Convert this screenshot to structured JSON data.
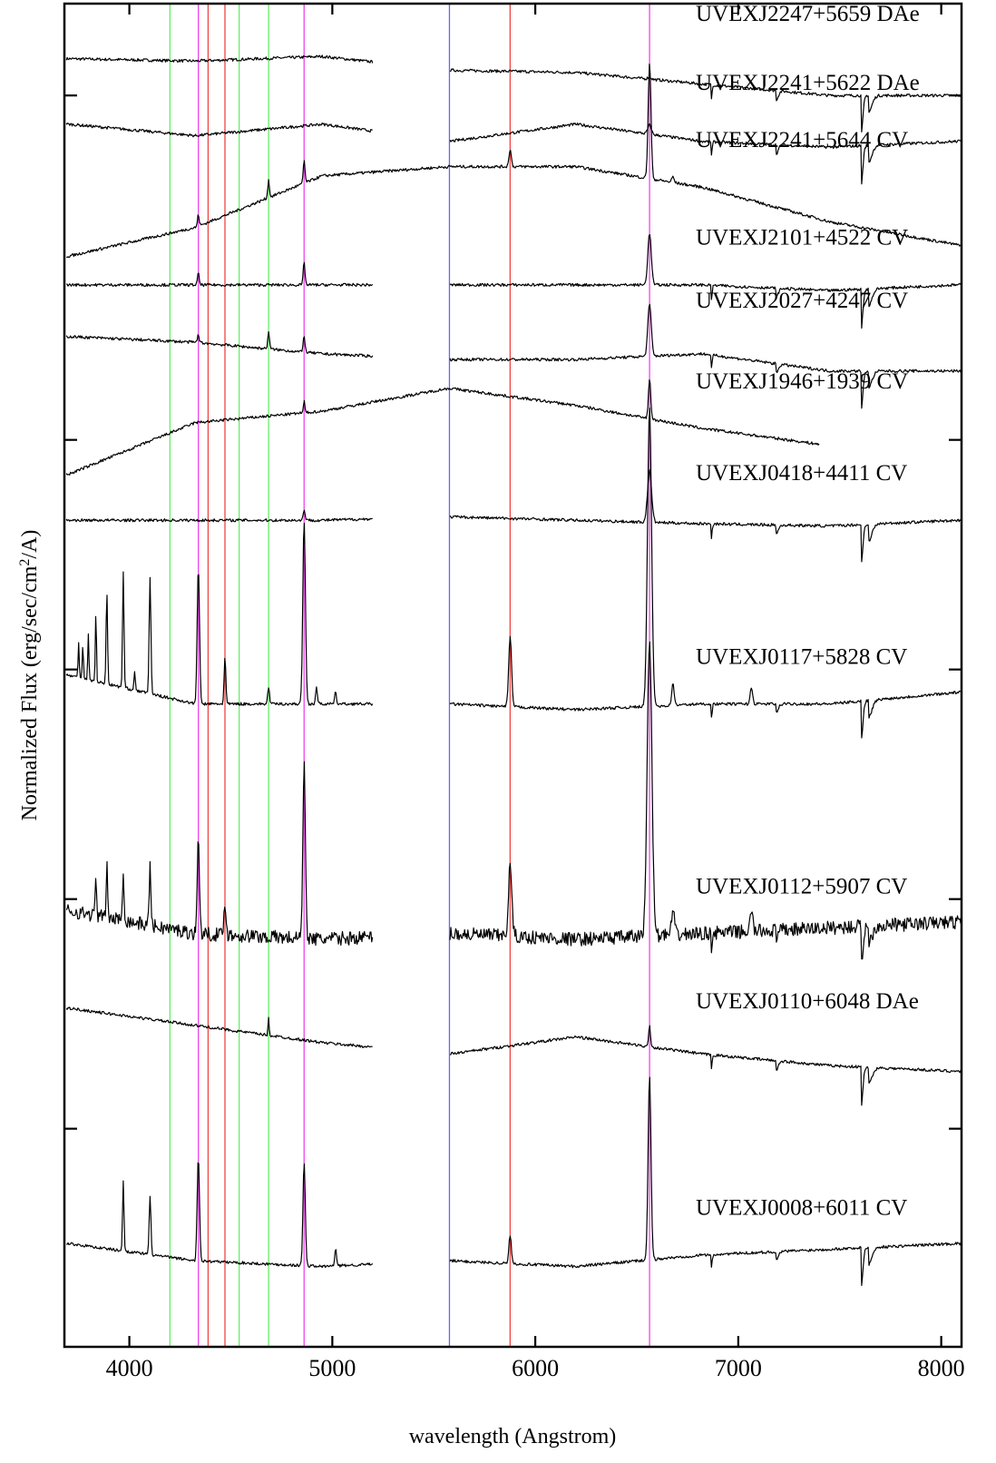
{
  "chart_data": {
    "type": "line",
    "title": "",
    "xlabel": "wavelength (Angstrom)",
    "ylabel_prefix": "Normalized Flux (erg/sec/cm",
    "ylabel_sup": "2",
    "ylabel_suffix": "/A)",
    "xlim": [
      3680,
      8100
    ],
    "xticks": [
      4000,
      5000,
      6000,
      7000,
      8000
    ],
    "xtick_labels": [
      "4000",
      "5000",
      "6000",
      "7000",
      "8000"
    ],
    "blue_gap": [
      5200,
      5580
    ],
    "reference_lines": [
      {
        "wavelength": 4200,
        "color": "#66ee66"
      },
      {
        "wavelength": 4541,
        "color": "#66ee66"
      },
      {
        "wavelength": 4686,
        "color": "#66ee66"
      },
      {
        "wavelength": 4340,
        "color": "#ee44ee"
      },
      {
        "wavelength": 4861,
        "color": "#ee44ee"
      },
      {
        "wavelength": 6563,
        "color": "#ee44ee"
      },
      {
        "wavelength": 4388,
        "color": "#ee4444"
      },
      {
        "wavelength": 4471,
        "color": "#ee4444"
      },
      {
        "wavelength": 5876,
        "color": "#ee4444"
      },
      {
        "wavelength": 5577,
        "color": "#6666ee"
      }
    ],
    "series": [
      {
        "name": "UVEXJ2247+5659 DAe",
        "base": 1.3,
        "lvl": [
          0.02,
          0,
          0.04,
          -0.08,
          -0.1,
          -0.2,
          -0.3,
          -0.3
        ],
        "em": [
          [
            6563,
            0.02,
            12
          ]
        ],
        "absorb": true
      },
      {
        "name": "UVEXJ2241+5622 DAe",
        "base": 0.7,
        "lvl": [
          0.05,
          -0.05,
          0.05,
          -0.1,
          0.05,
          -0.1,
          -0.15,
          -0.1
        ],
        "em": [
          [
            6563,
            0.08,
            12
          ]
        ],
        "absorb": true
      },
      {
        "name": "UVEXJ2241+5644 CV",
        "base": 0.2,
        "lvl": [
          -0.6,
          -0.35,
          0.1,
          0.18,
          0.18,
          0.0,
          -0.3,
          -0.5
        ],
        "em": [
          [
            4340,
            0.1,
            6
          ],
          [
            4686,
            0.15,
            6
          ],
          [
            4861,
            0.2,
            6
          ],
          [
            5876,
            0.15,
            8
          ],
          [
            6563,
            1.0,
            10
          ],
          [
            6678,
            0.05,
            8
          ]
        ],
        "absorb": false
      },
      {
        "name": "UVEXJ2101+4522 CV",
        "base": -0.65,
        "lvl": [
          0,
          0,
          0,
          0,
          0,
          0,
          -0.05,
          0
        ],
        "em": [
          [
            4340,
            0.1,
            6
          ],
          [
            4861,
            0.2,
            6
          ],
          [
            6563,
            0.45,
            12
          ]
        ],
        "absorb": true
      },
      {
        "name": "UVEXJ2027+4247 CV",
        "base": -1.2,
        "lvl": [
          0.1,
          0.05,
          -0.05,
          -0.1,
          -0.1,
          -0.05,
          -0.2,
          -0.2
        ],
        "em": [
          [
            4340,
            0.07,
            6
          ],
          [
            4686,
            0.15,
            6
          ],
          [
            4861,
            0.15,
            6
          ],
          [
            6563,
            0.45,
            12
          ]
        ],
        "absorb": true
      },
      {
        "name": "UVEXJ1946+1939 CV",
        "base": -1.9,
        "lvl": [
          -0.4,
          0.05,
          0.15,
          0.35,
          0.2,
          0.0,
          -0.15,
          -0.25
        ],
        "em": [
          [
            4861,
            0.1,
            5
          ],
          [
            6563,
            0.35,
            8
          ]
        ],
        "absorb": false
      },
      {
        "name": "UVEXJ0418+4411 CV",
        "base": -2.7,
        "lvl": [
          0,
          0,
          0,
          0.03,
          0.0,
          -0.03,
          -0.05,
          0.0
        ],
        "em": [
          [
            4861,
            0.1,
            6
          ],
          [
            6563,
            0.45,
            14
          ]
        ],
        "absorb": true
      },
      {
        "name": "UVEXJ0117+5828 CV",
        "base": -4.3,
        "lvl": [
          0.25,
          0.0,
          0.0,
          0.0,
          -0.05,
          0.0,
          0.0,
          0.1
        ],
        "em": [
          [
            3750,
            0.3,
            4
          ],
          [
            3771,
            0.3,
            4
          ],
          [
            3798,
            0.4,
            4
          ],
          [
            3835,
            0.6,
            4
          ],
          [
            3889,
            0.8,
            5
          ],
          [
            3970,
            1.0,
            5
          ],
          [
            4026,
            0.15,
            5
          ],
          [
            4102,
            1.0,
            6
          ],
          [
            4340,
            1.2,
            8
          ],
          [
            4471,
            0.4,
            6
          ],
          [
            4686,
            0.15,
            6
          ],
          [
            4861,
            1.6,
            9
          ],
          [
            4922,
            0.15,
            6
          ],
          [
            5016,
            0.1,
            6
          ],
          [
            5876,
            0.6,
            10
          ],
          [
            6563,
            2.6,
            14
          ],
          [
            6678,
            0.2,
            8
          ],
          [
            7065,
            0.15,
            8
          ]
        ],
        "absorb": true
      },
      {
        "name": "UVEXJ0112+5907 CV",
        "base": -6.3,
        "lvl": [
          0.2,
          0.0,
          -0.05,
          0.0,
          -0.05,
          0.0,
          0.05,
          0.1
        ],
        "em": [
          [
            3835,
            0.3,
            5
          ],
          [
            3889,
            0.45,
            5
          ],
          [
            3970,
            0.4,
            6
          ],
          [
            4102,
            0.5,
            6
          ],
          [
            4340,
            0.8,
            8
          ],
          [
            4471,
            0.3,
            7
          ],
          [
            4861,
            1.5,
            9
          ],
          [
            5876,
            0.6,
            12
          ],
          [
            6563,
            2.6,
            16
          ],
          [
            6678,
            0.2,
            10
          ],
          [
            7065,
            0.15,
            10
          ]
        ],
        "absorb": true,
        "noisy": true
      },
      {
        "name": "UVEXJ0110+6048 DAe",
        "base": -7.3,
        "lvl": [
          0.35,
          0.2,
          0.05,
          -0.05,
          0.1,
          -0.05,
          -0.15,
          -0.2
        ],
        "em": [
          [
            4686,
            0.15,
            4
          ],
          [
            6563,
            0.2,
            6
          ]
        ],
        "absorb": true
      },
      {
        "name": "UVEXJ0008+6011 CV",
        "base": -9.1,
        "lvl": [
          0.1,
          -0.05,
          -0.1,
          -0.05,
          -0.1,
          0.0,
          0.05,
          0.1
        ],
        "em": [
          [
            3970,
            0.6,
            5
          ],
          [
            4102,
            0.5,
            6
          ],
          [
            4340,
            0.9,
            8
          ],
          [
            4861,
            0.9,
            8
          ],
          [
            5016,
            0.15,
            6
          ],
          [
            5876,
            0.25,
            8
          ],
          [
            6563,
            1.6,
            10
          ]
        ],
        "absorb": true
      }
    ]
  }
}
